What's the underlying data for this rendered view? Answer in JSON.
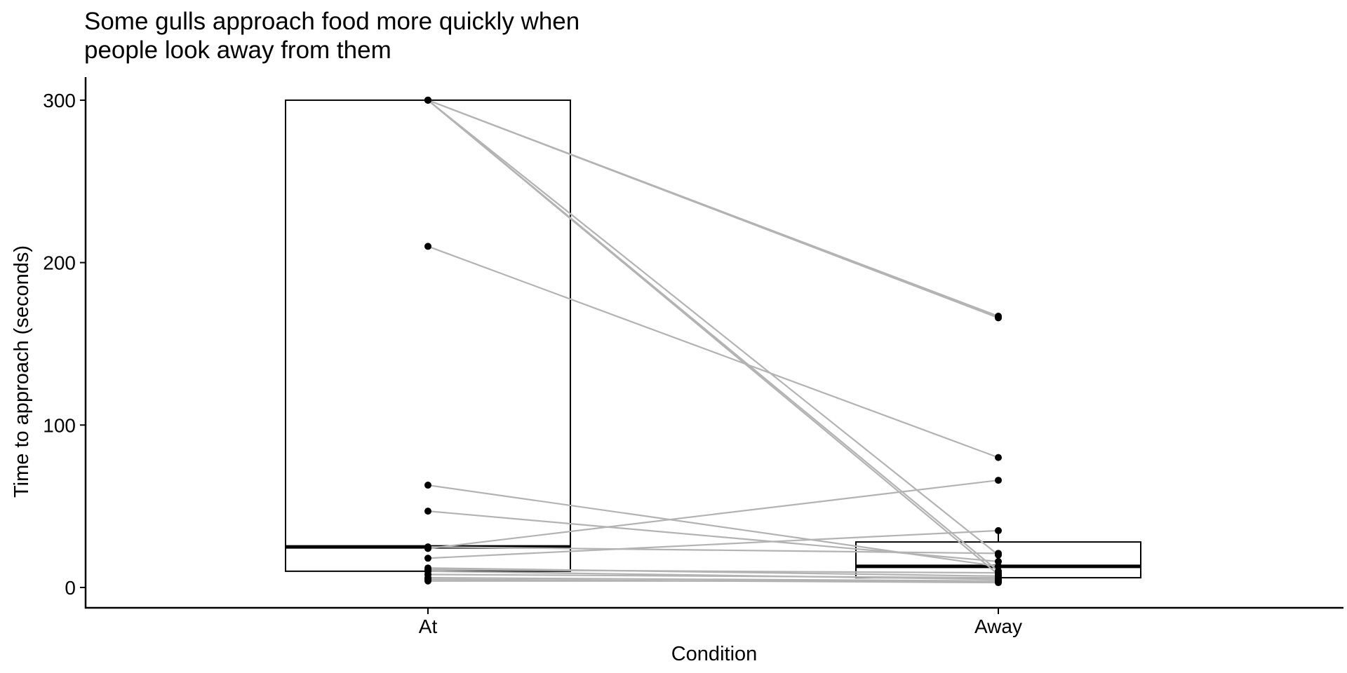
{
  "chart_data": {
    "type": "box-paired",
    "title_lines": [
      "Some gulls approach food more quickly when",
      "people look away from them"
    ],
    "xlabel": "Condition",
    "ylabel": "Time to approach (seconds)",
    "categories": [
      "At",
      "Away"
    ],
    "ylim": [
      -12,
      315
    ],
    "yticks": [
      0,
      100,
      200,
      300
    ],
    "grid": false,
    "legend": "none",
    "colors": {
      "line": "#b3b3b3",
      "point": "#000000",
      "box": "#000000"
    },
    "boxes": [
      {
        "category": "At",
        "q1": 10,
        "median": 25,
        "q3": 300,
        "whisker_low": 4,
        "whisker_high": 300
      },
      {
        "category": "Away",
        "q1": 6,
        "median": 13,
        "q3": 28,
        "whisker_low": 3,
        "whisker_high": 35
      }
    ],
    "pairs": [
      {
        "at": 300,
        "away": 167
      },
      {
        "at": 300,
        "away": 166
      },
      {
        "at": 300,
        "away": 20
      },
      {
        "at": 300,
        "away": 10
      },
      {
        "at": 300,
        "away": 8
      },
      {
        "at": 210,
        "away": 80
      },
      {
        "at": 63,
        "away": 13
      },
      {
        "at": 47,
        "away": 16
      },
      {
        "at": 25,
        "away": 21
      },
      {
        "at": 24,
        "away": 66
      },
      {
        "at": 18,
        "away": 35
      },
      {
        "at": 12,
        "away": 7
      },
      {
        "at": 11,
        "away": 9
      },
      {
        "at": 10,
        "away": 5
      },
      {
        "at": 8,
        "away": 6
      },
      {
        "at": 6,
        "away": 4
      },
      {
        "at": 5,
        "away": 3
      },
      {
        "at": 4,
        "away": 4
      }
    ]
  }
}
